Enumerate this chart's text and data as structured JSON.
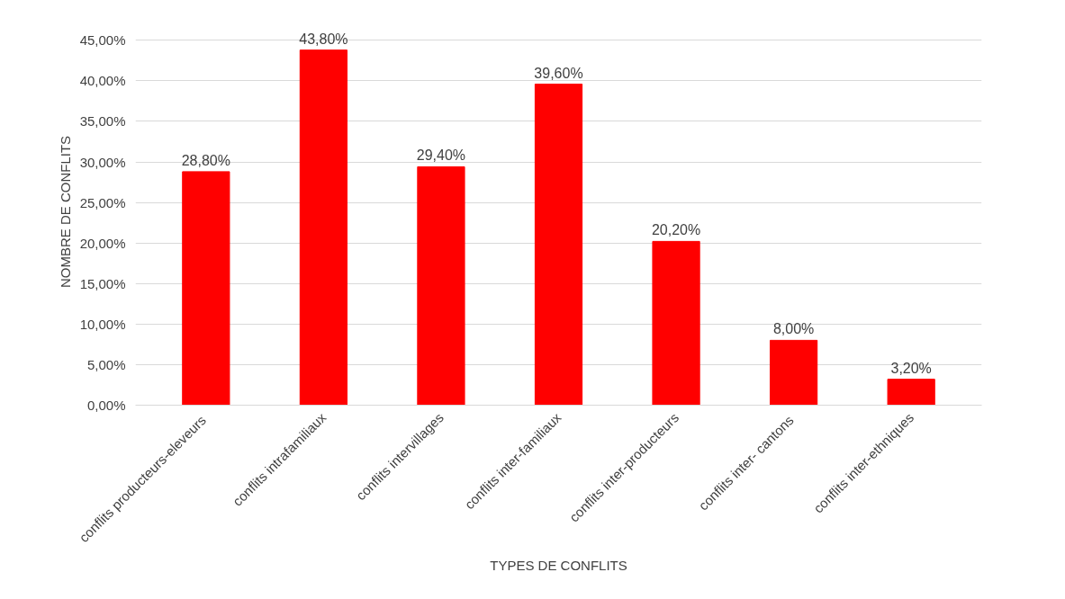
{
  "chart_data": {
    "type": "bar",
    "xlabel": "TYPES DE CONFLITS",
    "ylabel": "NOMBRE DE CONFLITS",
    "categories": [
      "conflits  producteurs-eleveurs",
      "conflits intrafamiliaux",
      "conflits intervillages",
      "conflits inter-familiaux",
      "conflits inter-producteurs",
      "conflits  inter- cantons",
      "conflits inter-ethniques"
    ],
    "values": [
      28.8,
      43.8,
      29.4,
      39.6,
      20.2,
      8.0,
      3.2
    ],
    "value_labels": [
      "28,80%",
      "43,80%",
      "29,40%",
      "39,60%",
      "20,20%",
      "8,00%",
      "3,20%"
    ],
    "color": "#ff0000",
    "ylim": [
      0,
      45
    ],
    "yticks": [
      {
        "value": 0,
        "label": "0,00%"
      },
      {
        "value": 5,
        "label": "5,00%"
      },
      {
        "value": 10,
        "label": "10,00%"
      },
      {
        "value": 15,
        "label": "15,00%"
      },
      {
        "value": 20,
        "label": "20,00%"
      },
      {
        "value": 25,
        "label": "25,00%"
      },
      {
        "value": 30,
        "label": "30,00%"
      },
      {
        "value": 35,
        "label": "35,00%"
      },
      {
        "value": 40,
        "label": "40,00%"
      },
      {
        "value": 45,
        "label": "45,00%"
      }
    ],
    "grid": "y"
  }
}
